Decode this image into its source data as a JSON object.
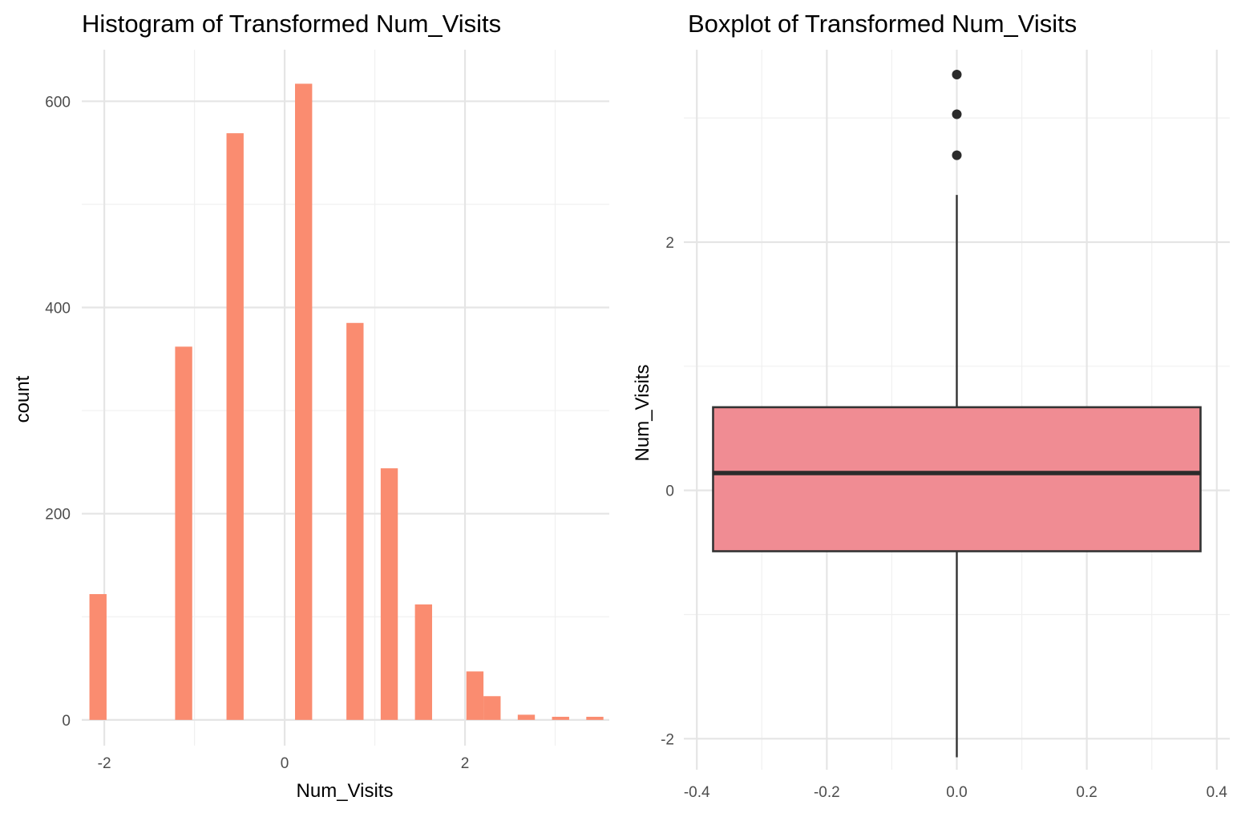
{
  "chart_data": [
    {
      "type": "bar",
      "title": "Histogram of Transformed Num_Visits",
      "xlabel": "Num_Visits",
      "ylabel": "count",
      "xlim": [
        -2.25,
        3.6
      ],
      "ylim": [
        -25,
        650
      ],
      "x_ticks": [
        -2,
        0,
        2
      ],
      "x_tick_labels": [
        "-2",
        "0",
        "2"
      ],
      "y_ticks": [
        0,
        200,
        400,
        600
      ],
      "y_tick_labels": [
        "0",
        "200",
        "400",
        "600"
      ],
      "bin_width": 0.19,
      "bar_color": "#FA8C70",
      "bins": [
        {
          "x": -2.07,
          "count": 122
        },
        {
          "x": -1.12,
          "count": 362
        },
        {
          "x": -0.55,
          "count": 569
        },
        {
          "x": 0.21,
          "count": 617
        },
        {
          "x": 0.78,
          "count": 385
        },
        {
          "x": 1.16,
          "count": 244
        },
        {
          "x": 1.54,
          "count": 112
        },
        {
          "x": 2.11,
          "count": 47
        },
        {
          "x": 2.3,
          "count": 23
        },
        {
          "x": 2.68,
          "count": 5
        },
        {
          "x": 3.06,
          "count": 3
        },
        {
          "x": 3.44,
          "count": 3
        }
      ]
    },
    {
      "type": "boxplot",
      "title": "Boxplot of Transformed Num_Visits",
      "xlabel": "",
      "ylabel": "Num_Visits",
      "xlim": [
        -0.42,
        0.42
      ],
      "ylim": [
        -2.25,
        3.55
      ],
      "x_ticks": [
        -0.4,
        -0.2,
        0.0,
        0.2,
        0.4
      ],
      "x_tick_labels": [
        "-0.4",
        "-0.2",
        "0.0",
        "0.2",
        "0.4"
      ],
      "y_ticks": [
        -2,
        0,
        2
      ],
      "y_tick_labels": [
        "-2",
        "0",
        "2"
      ],
      "box_fill": "#F08C93",
      "box": {
        "x_center": 0.0,
        "half_width": 0.375,
        "whisker_low": -2.15,
        "q1": -0.49,
        "median": 0.14,
        "q3": 0.67,
        "whisker_high": 2.38
      },
      "outliers": [
        2.7,
        3.03,
        3.35
      ]
    }
  ]
}
